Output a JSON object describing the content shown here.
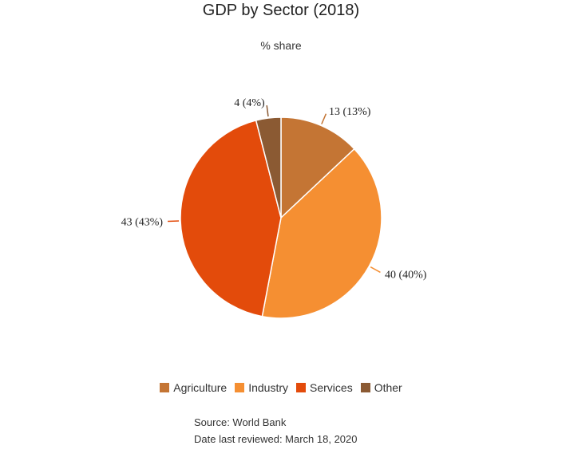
{
  "chart_data": {
    "type": "pie",
    "title": "GDP by Sector (2018)",
    "subtitle": "% share",
    "categories": [
      "Agriculture",
      "Industry",
      "Services",
      "Other"
    ],
    "values": [
      13,
      40,
      43,
      4
    ],
    "data_labels": [
      "13 (13%)",
      "40 (40%)",
      "43 (43%)",
      "4 (4%)"
    ],
    "colors": [
      "#c47534",
      "#f58f32",
      "#e34b0b",
      "#8b5a33"
    ],
    "legend_position": "bottom"
  },
  "footer": {
    "source": "Source: World Bank",
    "reviewed": "Date last reviewed: March 18, 2020"
  }
}
